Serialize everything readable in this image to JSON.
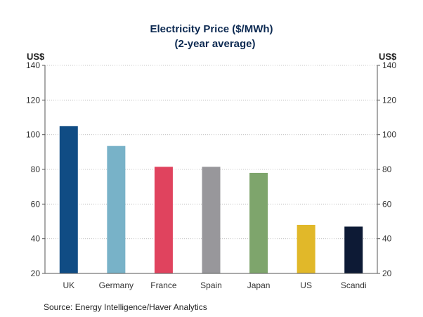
{
  "chart_data": {
    "type": "bar",
    "title_line1": "Electricity Price ($/MWh)",
    "title_line2": "(2-year average)",
    "ylabel_left": "US$",
    "ylabel_right": "US$",
    "categories": [
      "UK",
      "Germany",
      "France",
      "Spain",
      "Japan",
      "US",
      "Scandi"
    ],
    "values": [
      105,
      93.5,
      81.5,
      81.5,
      78,
      48,
      47
    ],
    "colors": [
      "#104c84",
      "#78b2c8",
      "#e0435e",
      "#98979b",
      "#7ea56c",
      "#e1b829",
      "#0d1a35"
    ],
    "ylim": [
      20,
      140
    ],
    "yticks": [
      20,
      40,
      60,
      80,
      100,
      120,
      140
    ],
    "grid": true,
    "source": "Source:  Energy Intelligence/Haver Analytics"
  }
}
